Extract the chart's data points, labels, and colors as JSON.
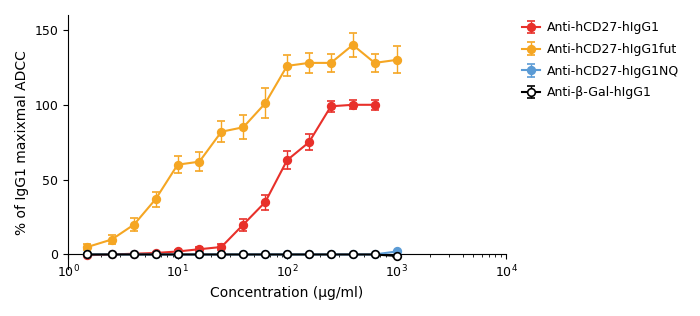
{
  "title": "",
  "xlabel": "Concentration (μg/ml)",
  "ylabel": "% of IgG1 maxixmal ADCC",
  "xlim_log": [
    1,
    10000
  ],
  "ylim": [
    -10,
    160
  ],
  "yticks": [
    0,
    50,
    100,
    150
  ],
  "series": [
    {
      "label": "Anti-hCD27-hIgG1",
      "color": "#e8302a",
      "marker": "o",
      "markerfacecolor": "#e8302a",
      "markeredgecolor": "#e8302a",
      "x": [
        1.5,
        2.5,
        4.0,
        6.3,
        10.0,
        15.8,
        25.1,
        39.8,
        63.1,
        100.0,
        158.5,
        251.2,
        398.1,
        630.9,
        1000.0,
        1584.9,
        2511.9
      ],
      "y": [
        -0.5,
        0.0,
        0.5,
        1.0,
        2.0,
        3.5,
        5.0,
        20.0,
        35.0,
        63.0,
        75.0,
        99.0,
        100.0,
        100.0,
        null,
        null,
        null
      ],
      "yerr": [
        0.5,
        0.5,
        0.5,
        0.5,
        1.0,
        1.5,
        2.0,
        4.0,
        5.0,
        6.0,
        5.5,
        3.5,
        3.0,
        3.5,
        null,
        null,
        null
      ]
    },
    {
      "label": "Anti-hCD27-hIgG1fut",
      "color": "#f5a623",
      "marker": "o",
      "markerfacecolor": "#f5a623",
      "markeredgecolor": "#f5a623",
      "x": [
        1.5,
        2.5,
        4.0,
        6.3,
        10.0,
        15.8,
        25.1,
        39.8,
        63.1,
        100.0,
        158.5,
        251.2,
        398.1,
        630.9,
        1000.0,
        1584.9,
        2511.9
      ],
      "y": [
        5.0,
        10.0,
        20.0,
        37.0,
        60.0,
        62.0,
        82.0,
        85.0,
        101.0,
        126.0,
        128.0,
        128.0,
        140.0,
        128.0,
        130.0,
        null,
        null
      ],
      "yerr": [
        2.0,
        3.0,
        4.5,
        5.0,
        5.5,
        6.5,
        7.0,
        8.0,
        10.0,
        7.0,
        6.5,
        6.0,
        8.0,
        6.0,
        9.0,
        null,
        null
      ]
    },
    {
      "label": "Anti-hCD27-hIgG1NQ",
      "color": "#5b9bd5",
      "marker": "o",
      "markerfacecolor": "#5b9bd5",
      "markeredgecolor": "#5b9bd5",
      "x": [
        1.5,
        2.5,
        4.0,
        6.3,
        10.0,
        15.8,
        25.1,
        39.8,
        63.1,
        100.0,
        158.5,
        251.2,
        398.1,
        630.9,
        1000.0,
        1584.9,
        2511.9
      ],
      "y": [
        0.0,
        0.0,
        0.0,
        0.0,
        0.0,
        0.0,
        0.0,
        0.0,
        0.0,
        0.0,
        0.0,
        0.0,
        0.0,
        0.0,
        2.0,
        null,
        null
      ],
      "yerr": [
        0.2,
        0.2,
        0.2,
        0.2,
        0.2,
        0.2,
        0.2,
        0.2,
        0.2,
        0.2,
        0.2,
        0.2,
        0.2,
        0.2,
        0.5,
        null,
        null
      ]
    },
    {
      "label": "Anti-β-Gal-hIgG1",
      "color": "#000000",
      "marker": "o",
      "markerfacecolor": "#ffffff",
      "markeredgecolor": "#000000",
      "x": [
        1.5,
        2.5,
        4.0,
        6.3,
        10.0,
        15.8,
        25.1,
        39.8,
        63.1,
        100.0,
        158.5,
        251.2,
        398.1,
        630.9,
        1000.0,
        1584.9,
        2511.9
      ],
      "y": [
        0.0,
        0.0,
        0.0,
        0.0,
        0.0,
        0.0,
        0.0,
        0.0,
        0.0,
        0.0,
        0.0,
        0.0,
        0.0,
        0.0,
        -1.0,
        null,
        null
      ],
      "yerr": [
        0.2,
        0.2,
        0.2,
        0.2,
        0.2,
        0.2,
        0.2,
        0.2,
        0.2,
        0.2,
        0.2,
        0.2,
        0.2,
        0.2,
        0.5,
        null,
        null
      ]
    }
  ],
  "legend_fontsize": 9,
  "axis_fontsize": 10,
  "tick_fontsize": 9,
  "figsize": [
    7.0,
    3.16
  ],
  "dpi": 100
}
